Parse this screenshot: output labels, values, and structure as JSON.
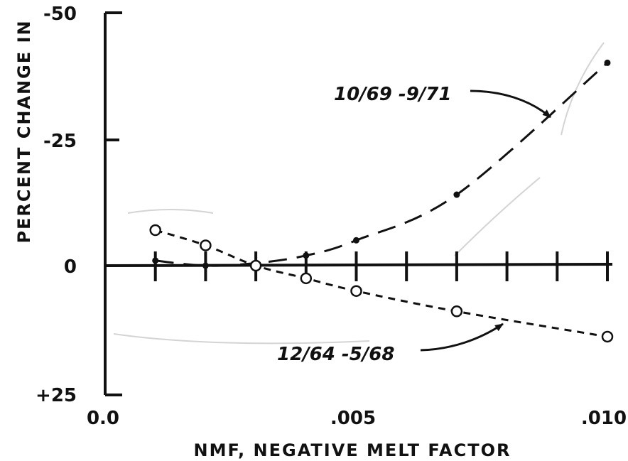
{
  "chart_data": {
    "type": "line",
    "title": "",
    "xlabel": "NMF, NEGATIVE MELT FACTOR",
    "ylabel": "PERCENT CHANGE IN",
    "xlim": [
      0.0,
      0.01
    ],
    "ylim": [
      25,
      -50
    ],
    "y_axis_inverted": true,
    "x_ticks": [
      0.0,
      0.001,
      0.002,
      0.003,
      0.004,
      0.005,
      0.006,
      0.007,
      0.008,
      0.009,
      0.01
    ],
    "x_tick_labels": [
      {
        "value": 0.0,
        "label": "0.0"
      },
      {
        "value": 0.005,
        "label": ".005"
      },
      {
        "value": 0.01,
        "label": ".010"
      }
    ],
    "y_tick_labels": [
      {
        "value": -50,
        "label": "-50"
      },
      {
        "value": -25,
        "label": "-25"
      },
      {
        "value": 0,
        "label": "0"
      },
      {
        "value": 25,
        "label": "+25"
      }
    ],
    "grid": false,
    "series": [
      {
        "name": "10/69 - 9/71",
        "style": "long-dash",
        "marker": "filled-dot",
        "color": "#111111",
        "x": [
          0.001,
          0.002,
          0.003,
          0.004,
          0.005,
          0.007,
          0.01
        ],
        "y": [
          -1,
          0,
          -0.5,
          -2,
          -5,
          -14,
          -40
        ]
      },
      {
        "name": "12/64 - 5/68",
        "style": "short-dash",
        "marker": "open-circle",
        "color": "#111111",
        "x": [
          0.001,
          0.002,
          0.003,
          0.004,
          0.005,
          0.007,
          0.01
        ],
        "y": [
          -7,
          -4,
          0,
          2.5,
          5,
          9,
          14
        ]
      }
    ],
    "annotations": [
      {
        "text": "10/69 -9/71",
        "series": "10/69 - 9/71"
      },
      {
        "text": "12/64 -5/68",
        "series": "12/64 - 5/68"
      }
    ]
  }
}
